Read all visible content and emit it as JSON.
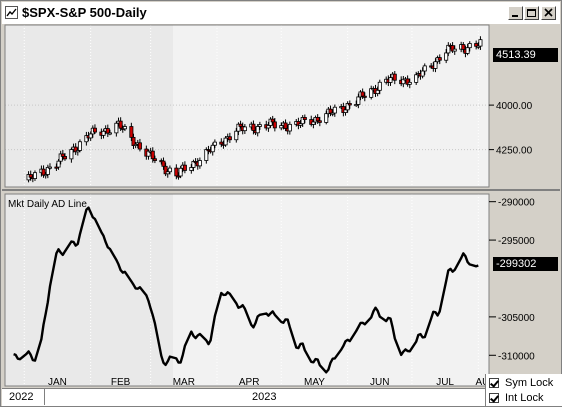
{
  "window": {
    "title": "$SPX-S&P 500-Daily"
  },
  "upper_panel": {
    "last_value": "4513.39",
    "axis_ticks": [
      "4250.00",
      "4000.00"
    ]
  },
  "lower_panel": {
    "indicator_label": "Mkt Daily AD Line",
    "last_value": "-299302",
    "axis_ticks": [
      "-290000",
      "-295000",
      "-305000",
      "-310000"
    ]
  },
  "x_axis": {
    "months": [
      "JAN",
      "FEB",
      "MAR",
      "APR",
      "MAY",
      "JUN",
      "JUL",
      "AUG"
    ],
    "years": [
      "2022",
      "2023"
    ]
  },
  "controls": {
    "sym_lock": "Sym Lock",
    "int_lock": "Int Lock"
  },
  "colors": {
    "down_candle": "#cc0000",
    "up_candle": "#ffffff",
    "line": "#000000",
    "value_badge": "#000000"
  },
  "chart_data": [
    {
      "type": "candlestick",
      "title": "$SPX-S&P 500-Daily",
      "ylim": [
        3790,
        4700
      ],
      "yticks": [
        4000,
        4250
      ],
      "last": 4513.39,
      "x": [
        "2023-01-03",
        "2023-01-17",
        "2023-01-31",
        "2023-02-14",
        "2023-02-28",
        "2023-03-13",
        "2023-03-27",
        "2023-04-10",
        "2023-04-24",
        "2023-05-08",
        "2023-05-22",
        "2023-06-05",
        "2023-06-19",
        "2023-07-03",
        "2023-07-17",
        "2023-07-31"
      ],
      "close": [
        3830,
        3930,
        4077,
        4137,
        3970,
        3855,
        3977,
        4110,
        4137,
        4138,
        4192,
        4273,
        4388,
        4398,
        4555,
        4588
      ]
    },
    {
      "type": "line",
      "title": "Mkt Daily AD Line",
      "ylim": [
        -314000,
        -289000
      ],
      "yticks": [
        -290000,
        -295000,
        -305000,
        -310000
      ],
      "last": -299302,
      "x": [
        "2022-12-27",
        "2023-01-06",
        "2023-01-17",
        "2023-01-24",
        "2023-01-31",
        "2023-02-07",
        "2023-02-14",
        "2023-02-21",
        "2023-02-28",
        "2023-03-07",
        "2023-03-14",
        "2023-03-21",
        "2023-03-28",
        "2023-04-04",
        "2023-04-11",
        "2023-04-18",
        "2023-04-25",
        "2023-05-02",
        "2023-05-09",
        "2023-05-16",
        "2023-05-23",
        "2023-05-30",
        "2023-06-06",
        "2023-06-13",
        "2023-06-20",
        "2023-06-27",
        "2023-07-05",
        "2023-07-12",
        "2023-07-19",
        "2023-07-26",
        "2023-08-01"
      ],
      "values": [
        -310500,
        -310000,
        -297000,
        -295500,
        -291000,
        -295000,
        -298000,
        -301000,
        -303000,
        -310500,
        -311000,
        -307000,
        -308000,
        -302000,
        -303000,
        -306000,
        -304500,
        -305000,
        -309000,
        -310500,
        -311500,
        -309000,
        -306000,
        -304500,
        -305500,
        -309500,
        -308000,
        -304500,
        -299000,
        -297500,
        -298500
      ]
    }
  ]
}
